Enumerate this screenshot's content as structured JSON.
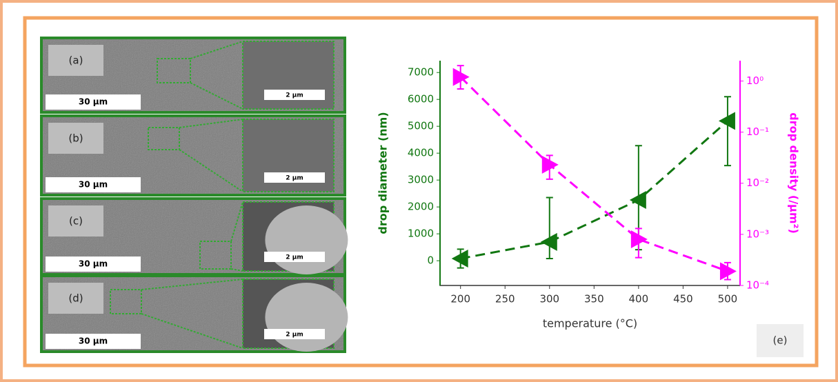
{
  "panels": [
    {
      "label": "(a)",
      "scale_bar": "30 µm",
      "inset_scale_bar": "2 µm"
    },
    {
      "label": "(b)",
      "scale_bar": "30 µm",
      "inset_scale_bar": "2 µm"
    },
    {
      "label": "(c)",
      "scale_bar": "30 µm",
      "inset_scale_bar": "2 µm"
    },
    {
      "label": "(d)",
      "scale_bar": "30 µm",
      "inset_scale_bar": "2 µm"
    }
  ],
  "chart_label": "(e)",
  "chart_data": {
    "type": "line",
    "x_label": "temperature (°C)",
    "y_label": "drop diameter (nm)",
    "y2_label": "drop density (/µm²)",
    "x": [
      200,
      300,
      400,
      500
    ],
    "xlim": [
      177,
      514
    ],
    "xticks": [
      200,
      250,
      300,
      350,
      400,
      450,
      500
    ],
    "ylim": [
      -920,
      7440
    ],
    "yticks": [
      0,
      1000,
      2000,
      3000,
      4000,
      5000,
      6000,
      7000
    ],
    "y2lim": [
      0.0001,
      2.5
    ],
    "y2_log": true,
    "y2ticks": [
      {
        "value": 0.0001,
        "label": "10⁻⁴"
      },
      {
        "value": 0.001,
        "label": "10⁻³"
      },
      {
        "value": 0.01,
        "label": "10⁻²"
      },
      {
        "value": 0.1,
        "label": "10⁻¹"
      },
      {
        "value": 1,
        "label": "10⁰"
      }
    ],
    "series": [
      {
        "name": "drop diameter",
        "color": "#117711",
        "marker": "left",
        "axis": "y",
        "values": [
          80,
          700,
          2260,
          5200
        ],
        "yerr_minus": [
          350,
          620,
          1850,
          1660
        ],
        "yerr_plus": [
          350,
          1650,
          2020,
          900
        ]
      },
      {
        "name": "drop density",
        "color": "#ff00ff",
        "marker": "right",
        "axis": "y2",
        "values": [
          1.2,
          0.023,
          0.0008,
          0.00019
        ],
        "yerr_minus": [
          0.5,
          0.011,
          0.00045,
          6e-05
        ],
        "yerr_plus": [
          0.8,
          0.012,
          0.0005,
          9e-05
        ]
      }
    ]
  }
}
